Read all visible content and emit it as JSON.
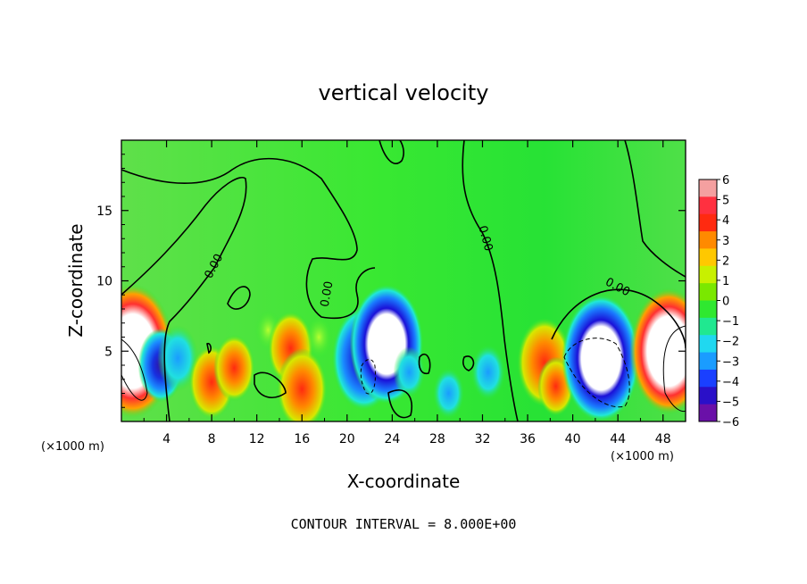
{
  "chart_data": {
    "type": "heatmap",
    "title": "vertical velocity",
    "xlabel": "X-coordinate",
    "ylabel": "Z-coordinate",
    "x_unit": "(×1000 m)",
    "x_unit_right": "(×1000 m)",
    "xlim": [
      0,
      50
    ],
    "ylim": [
      0,
      20
    ],
    "x_ticks": [
      "4",
      "8",
      "12",
      "16",
      "20",
      "24",
      "28",
      "32",
      "36",
      "40",
      "44",
      "48"
    ],
    "y_ticks": [
      "5",
      "10",
      "15"
    ],
    "colorbar": {
      "min": -6,
      "max": 6,
      "labels": [
        "6",
        "5",
        "4",
        "3",
        "2",
        "1",
        "0",
        "−1",
        "−2",
        "−3",
        "−4",
        "−5",
        "−6"
      ]
    },
    "contour_label": "0.00",
    "footer": "CONTOUR INTERVAL = 8.000E+00",
    "blobs": [
      {
        "x": 1.0,
        "z": 5.0,
        "w": 7.0
      },
      {
        "x": 3.5,
        "z": 4.0,
        "w": -3.0
      },
      {
        "x": 5.0,
        "z": 4.5,
        "w": -2.5
      },
      {
        "x": 8.0,
        "z": 2.8,
        "w": 3.0
      },
      {
        "x": 10.0,
        "z": 3.8,
        "w": 2.5
      },
      {
        "x": 13.0,
        "z": 6.5,
        "w": 0.8
      },
      {
        "x": 15.0,
        "z": 5.2,
        "w": 3.0
      },
      {
        "x": 16.0,
        "z": 2.3,
        "w": 3.5
      },
      {
        "x": 17.5,
        "z": 6.0,
        "w": 1.0
      },
      {
        "x": 21.5,
        "z": 4.5,
        "w": -5.0
      },
      {
        "x": 23.5,
        "z": 5.5,
        "w": -6.0
      },
      {
        "x": 25.5,
        "z": 3.5,
        "w": -1.5
      },
      {
        "x": 29.0,
        "z": 2.0,
        "w": -1.5
      },
      {
        "x": 32.5,
        "z": 3.5,
        "w": -1.8
      },
      {
        "x": 37.5,
        "z": 4.2,
        "w": 4.0
      },
      {
        "x": 38.5,
        "z": 2.5,
        "w": 2.0
      },
      {
        "x": 42.5,
        "z": 4.5,
        "w": -6.5
      },
      {
        "x": 48.5,
        "z": 5.0,
        "w": 6.5
      }
    ]
  }
}
